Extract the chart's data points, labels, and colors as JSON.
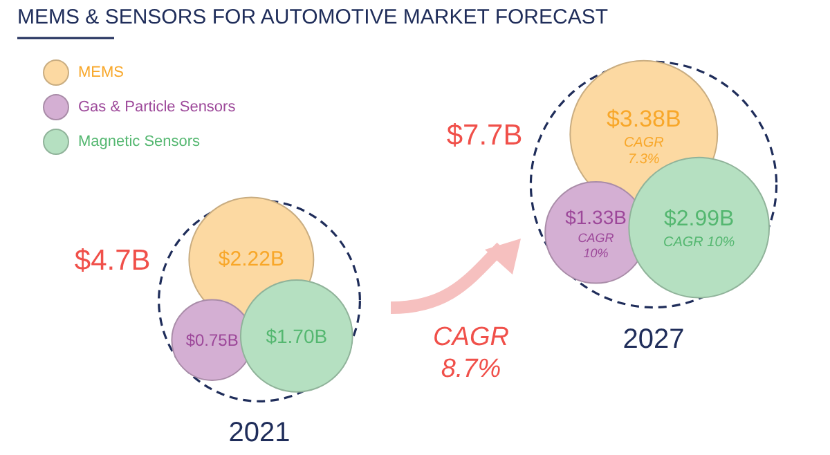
{
  "chart_data": {
    "type": "other",
    "title": "MEMS & SENSORS FOR AUTOMOTIVE MARKET FORECAST",
    "categories": [
      "2021",
      "2027"
    ],
    "legend": "top left",
    "series": [
      {
        "name": "MEMS",
        "color": "#fcd9a2",
        "values": [
          2.22,
          3.38
        ],
        "value_labels": [
          "$2.22B",
          "$3.38B"
        ]
      },
      {
        "name": "Gas & Particle Sensors",
        "color": "#d4afd3",
        "values": [
          0.75,
          1.33
        ],
        "value_labels": [
          "$0.75B",
          "$1.33B"
        ]
      },
      {
        "name": "Magnetic Sensors",
        "color": "#b5e0c1",
        "values": [
          1.7,
          2.99
        ],
        "value_labels": [
          "$1.70B",
          "$2.99B"
        ]
      }
    ],
    "totals": [
      "$4.7B",
      "$7.7B"
    ],
    "annotations": [
      "CAGR\n8.7%",
      "CAGR\n7.3%",
      "CAGR\n10%",
      "CAGR 10%"
    ]
  }
}
